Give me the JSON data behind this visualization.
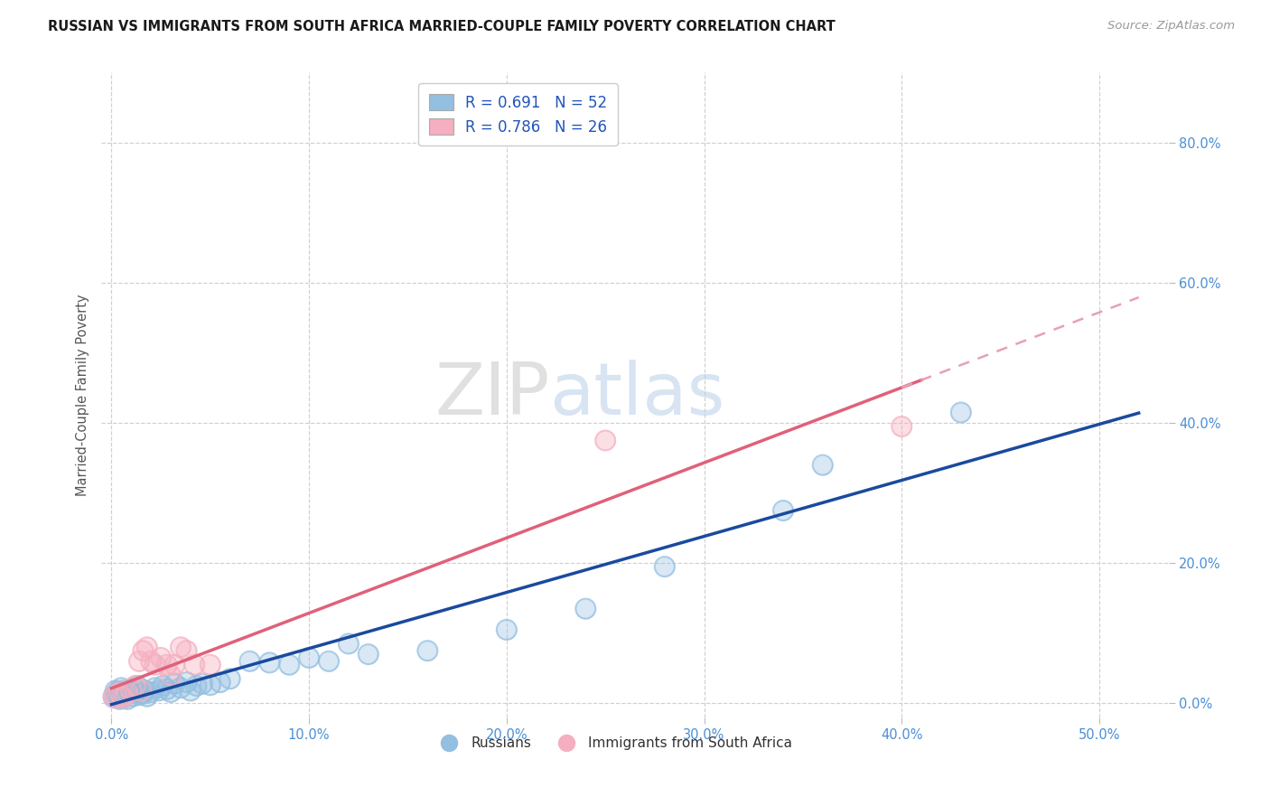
{
  "title": "RUSSIAN VS IMMIGRANTS FROM SOUTH AFRICA MARRIED-COUPLE FAMILY POVERTY CORRELATION CHART",
  "source": "Source: ZipAtlas.com",
  "ylabel": "Married-Couple Family Poverty",
  "xlabel_ticks": [
    "0.0%",
    "10.0%",
    "20.0%",
    "30.0%",
    "40.0%",
    "50.0%"
  ],
  "xlabel_tick_vals": [
    0.0,
    0.1,
    0.2,
    0.3,
    0.4,
    0.5
  ],
  "ylabel_ticks": [
    "0.0%",
    "20.0%",
    "40.0%",
    "60.0%",
    "80.0%"
  ],
  "ylabel_tick_vals": [
    0.0,
    0.2,
    0.4,
    0.6,
    0.8
  ],
  "xlim": [
    -0.005,
    0.535
  ],
  "ylim": [
    -0.02,
    0.9
  ],
  "russian_color": "#93bfe0",
  "sa_color": "#f5afc0",
  "russian_line_color": "#1a4a9e",
  "sa_line_color": "#e0607a",
  "sa_line_dash_color": "#e8a0b0",
  "russian_r": "0.691",
  "russian_n": "52",
  "sa_r": "0.786",
  "sa_n": "26",
  "watermark_zip": "ZIP",
  "watermark_atlas": "atlas",
  "background": "#ffffff",
  "grid_color": "#d0d0d0",
  "tick_color": "#4a8fd4",
  "russian_points": [
    [
      0.001,
      0.01
    ],
    [
      0.002,
      0.018
    ],
    [
      0.002,
      0.012
    ],
    [
      0.003,
      0.008
    ],
    [
      0.003,
      0.016
    ],
    [
      0.004,
      0.01
    ],
    [
      0.004,
      0.006
    ],
    [
      0.005,
      0.014
    ],
    [
      0.005,
      0.022
    ],
    [
      0.006,
      0.008
    ],
    [
      0.006,
      0.018
    ],
    [
      0.007,
      0.012
    ],
    [
      0.008,
      0.006
    ],
    [
      0.009,
      0.016
    ],
    [
      0.01,
      0.02
    ],
    [
      0.011,
      0.01
    ],
    [
      0.012,
      0.016
    ],
    [
      0.013,
      0.025
    ],
    [
      0.014,
      0.012
    ],
    [
      0.015,
      0.02
    ],
    [
      0.016,
      0.014
    ],
    [
      0.017,
      0.018
    ],
    [
      0.018,
      0.01
    ],
    [
      0.02,
      0.016
    ],
    [
      0.022,
      0.022
    ],
    [
      0.024,
      0.018
    ],
    [
      0.026,
      0.025
    ],
    [
      0.028,
      0.02
    ],
    [
      0.03,
      0.016
    ],
    [
      0.032,
      0.028
    ],
    [
      0.035,
      0.022
    ],
    [
      0.038,
      0.03
    ],
    [
      0.04,
      0.018
    ],
    [
      0.043,
      0.025
    ],
    [
      0.046,
      0.028
    ],
    [
      0.05,
      0.026
    ],
    [
      0.055,
      0.03
    ],
    [
      0.06,
      0.035
    ],
    [
      0.07,
      0.06
    ],
    [
      0.08,
      0.058
    ],
    [
      0.09,
      0.055
    ],
    [
      0.1,
      0.065
    ],
    [
      0.11,
      0.06
    ],
    [
      0.12,
      0.085
    ],
    [
      0.13,
      0.07
    ],
    [
      0.16,
      0.075
    ],
    [
      0.2,
      0.105
    ],
    [
      0.24,
      0.135
    ],
    [
      0.28,
      0.195
    ],
    [
      0.34,
      0.275
    ],
    [
      0.36,
      0.34
    ],
    [
      0.43,
      0.415
    ]
  ],
  "sa_points": [
    [
      0.001,
      0.008
    ],
    [
      0.002,
      0.012
    ],
    [
      0.003,
      0.008
    ],
    [
      0.004,
      0.015
    ],
    [
      0.005,
      0.01
    ],
    [
      0.006,
      0.008
    ],
    [
      0.007,
      0.012
    ],
    [
      0.008,
      0.015
    ],
    [
      0.01,
      0.02
    ],
    [
      0.012,
      0.025
    ],
    [
      0.014,
      0.06
    ],
    [
      0.015,
      0.018
    ],
    [
      0.016,
      0.075
    ],
    [
      0.018,
      0.08
    ],
    [
      0.02,
      0.06
    ],
    [
      0.022,
      0.055
    ],
    [
      0.025,
      0.065
    ],
    [
      0.028,
      0.055
    ],
    [
      0.03,
      0.04
    ],
    [
      0.032,
      0.055
    ],
    [
      0.035,
      0.08
    ],
    [
      0.038,
      0.075
    ],
    [
      0.042,
      0.055
    ],
    [
      0.05,
      0.055
    ],
    [
      0.25,
      0.375
    ],
    [
      0.4,
      0.395
    ]
  ]
}
